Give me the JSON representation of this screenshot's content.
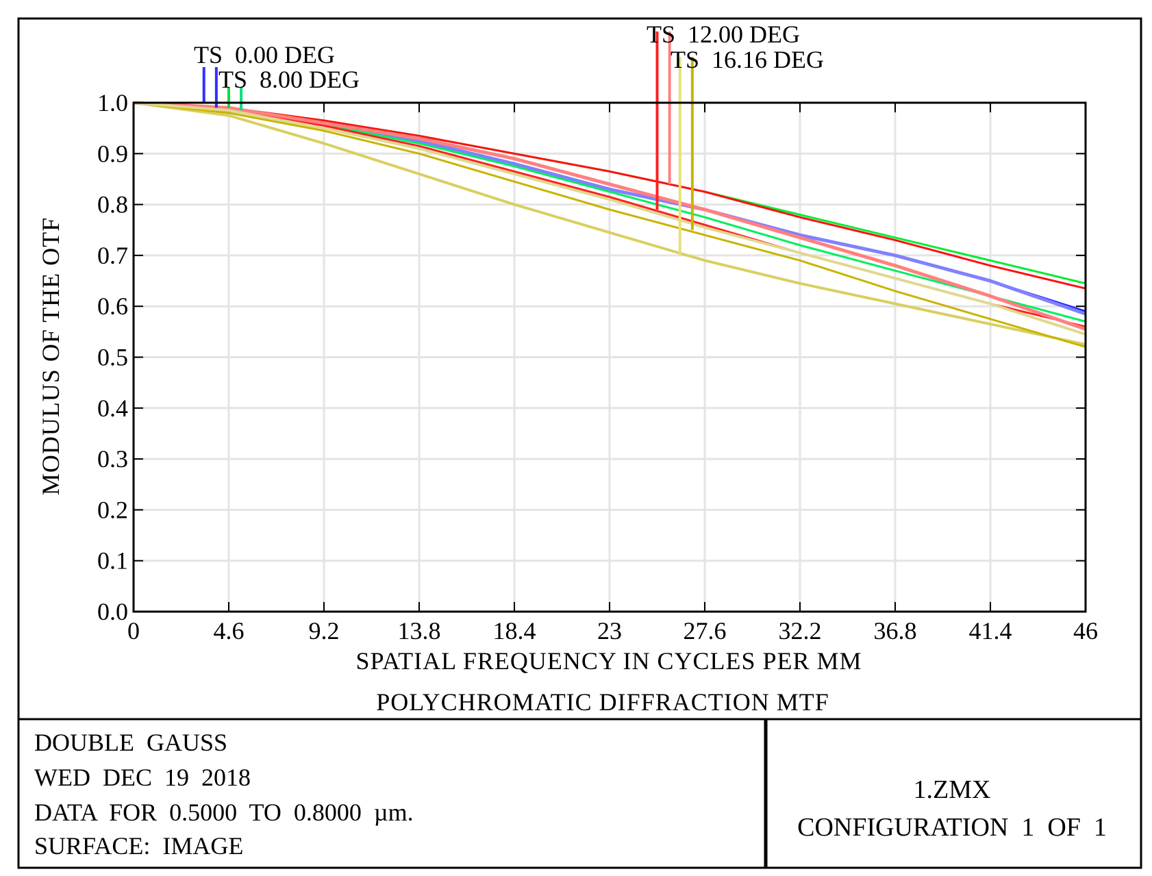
{
  "chart_data": {
    "type": "line",
    "title": "POLYCHROMATIC DIFFRACTION MTF",
    "xlabel": "SPATIAL FREQUENCY IN CYCLES PER MM",
    "ylabel": "MODULUS OF THE OTF",
    "xlim": [
      0,
      46
    ],
    "ylim": [
      0,
      1
    ],
    "grid": true,
    "xticks": [
      0,
      4.6,
      9.2,
      13.8,
      18.4,
      23,
      27.6,
      32.2,
      36.8,
      41.4,
      46
    ],
    "xtick_labels": [
      "0",
      "4.6",
      "9.2",
      "13.8",
      "18.4",
      "23",
      "27.6",
      "32.2",
      "36.8",
      "41.4",
      "46"
    ],
    "yticks": [
      0,
      0.1,
      0.2,
      0.3,
      0.4,
      0.5,
      0.6,
      0.7,
      0.8,
      0.9,
      1.0
    ],
    "ytick_labels": [
      "0.0",
      "0.1",
      "0.2",
      "0.3",
      "0.4",
      "0.5",
      "0.6",
      "0.7",
      "0.8",
      "0.9",
      "1.0"
    ],
    "field_labels": [
      {
        "text": "TS  0.00 DEG",
        "field": "0.00"
      },
      {
        "text": "TS  8.00 DEG",
        "field": "8.00"
      },
      {
        "text": "TS  12.00 DEG",
        "field": "12.00"
      },
      {
        "text": "TS  16.16 DEG",
        "field": "16.16"
      }
    ],
    "legend_markers": [
      {
        "field": "0.00",
        "color": "#3030ff",
        "x": 3.4,
        "top": 1.07,
        "bottom": 1.0
      },
      {
        "field": "0.00",
        "color": "#3030ff",
        "x": 4.0,
        "top": 1.07,
        "bottom": 0.99
      },
      {
        "field": "8.00",
        "color": "#00e040",
        "x": 4.6,
        "top": 1.03,
        "bottom": 0.99
      },
      {
        "field": "8.00",
        "color": "#00e080",
        "x": 5.2,
        "top": 1.03,
        "bottom": 0.985
      },
      {
        "field": "12.00",
        "color": "#ff2020",
        "x": 25.3,
        "top": 1.14,
        "bottom": 0.79
      },
      {
        "field": "12.00",
        "color": "#ff8080",
        "x": 25.9,
        "top": 1.14,
        "bottom": 0.84
      },
      {
        "field": "16.16",
        "color": "#e8e078",
        "x": 26.4,
        "top": 1.09,
        "bottom": 0.7
      },
      {
        "field": "16.16",
        "color": "#c8b400",
        "x": 27.0,
        "top": 1.09,
        "bottom": 0.75
      }
    ],
    "series": [
      {
        "name": "TS 0.00 DEG T",
        "color": "#2020ff",
        "width": 3,
        "x": [
          0,
          4.6,
          9.2,
          13.8,
          18.4,
          23,
          27.6,
          32.2,
          36.8,
          41.4,
          46
        ],
        "y": [
          1.0,
          0.985,
          0.96,
          0.925,
          0.88,
          0.83,
          0.79,
          0.74,
          0.7,
          0.65,
          0.59
        ]
      },
      {
        "name": "TS 0.00 DEG S",
        "color": "#8080ff",
        "width": 5,
        "x": [
          0,
          4.6,
          9.2,
          13.8,
          18.4,
          23,
          27.6,
          32.2,
          36.8,
          41.4,
          46
        ],
        "y": [
          1.0,
          0.985,
          0.96,
          0.925,
          0.88,
          0.83,
          0.79,
          0.74,
          0.7,
          0.65,
          0.585
        ]
      },
      {
        "name": "TS 8.00 DEG T",
        "color": "#00ee30",
        "width": 3,
        "x": [
          0,
          4.6,
          9.2,
          13.8,
          18.4,
          23,
          27.6,
          32.2,
          36.8,
          41.4,
          46
        ],
        "y": [
          1.0,
          0.99,
          0.965,
          0.935,
          0.9,
          0.865,
          0.825,
          0.78,
          0.735,
          0.69,
          0.645
        ]
      },
      {
        "name": "TS 8.00 DEG S",
        "color": "#00ee60",
        "width": 3,
        "x": [
          0,
          4.6,
          9.2,
          13.8,
          18.4,
          23,
          27.6,
          32.2,
          36.8,
          41.4,
          46
        ],
        "y": [
          1.0,
          0.985,
          0.958,
          0.92,
          0.875,
          0.825,
          0.775,
          0.72,
          0.67,
          0.62,
          0.57
        ]
      },
      {
        "name": "TS 12.00 DEG T",
        "color": "#ff1010",
        "width": 3,
        "x": [
          0,
          4.6,
          9.2,
          13.8,
          18.4,
          23,
          27.6,
          32.2,
          36.8,
          41.4,
          46
        ],
        "y": [
          1.0,
          0.99,
          0.965,
          0.935,
          0.9,
          0.865,
          0.825,
          0.775,
          0.73,
          0.68,
          0.635
        ]
      },
      {
        "name": "TS 12.00 DEG S",
        "color": "#ff2020",
        "width": 3,
        "x": [
          0,
          4.6,
          9.2,
          13.8,
          18.4,
          23,
          27.6,
          32.2,
          36.8,
          41.4,
          46
        ],
        "y": [
          1.0,
          0.985,
          0.955,
          0.915,
          0.865,
          0.815,
          0.76,
          0.705,
          0.655,
          0.605,
          0.56
        ]
      },
      {
        "name": "TS 12.00 DEG S2",
        "color": "#ff8080",
        "width": 5,
        "x": [
          0,
          4.6,
          9.2,
          13.8,
          18.4,
          23,
          27.6,
          32.2,
          36.8,
          41.4,
          46
        ],
        "y": [
          1.0,
          0.99,
          0.96,
          0.93,
          0.89,
          0.84,
          0.79,
          0.735,
          0.68,
          0.62,
          0.555
        ]
      },
      {
        "name": "TS 16.16 DEG T",
        "color": "#d8d060",
        "width": 4,
        "x": [
          0,
          4.6,
          9.2,
          13.8,
          18.4,
          23,
          27.6,
          32.2,
          36.8,
          41.4,
          46
        ],
        "y": [
          1.0,
          0.975,
          0.92,
          0.86,
          0.8,
          0.745,
          0.69,
          0.645,
          0.605,
          0.565,
          0.525
        ]
      },
      {
        "name": "TS 16.16 DEG S",
        "color": "#c8b400",
        "width": 3,
        "x": [
          0,
          4.6,
          9.2,
          13.8,
          18.4,
          23,
          27.6,
          32.2,
          36.8,
          41.4,
          46
        ],
        "y": [
          1.0,
          0.98,
          0.945,
          0.9,
          0.845,
          0.79,
          0.74,
          0.69,
          0.63,
          0.575,
          0.52
        ]
      },
      {
        "name": "TS 16.16 DEG S2",
        "color": "#e0d890",
        "width": 4,
        "x": [
          0,
          4.6,
          9.2,
          13.8,
          18.4,
          23,
          27.6,
          32.2,
          36.8,
          41.4,
          46
        ],
        "y": [
          1.0,
          0.985,
          0.95,
          0.91,
          0.86,
          0.81,
          0.755,
          0.705,
          0.655,
          0.605,
          0.545
        ]
      }
    ]
  },
  "info": {
    "lines": [
      "DOUBLE  GAUSS",
      "WED  DEC  19  2018",
      "DATA  FOR  0.5000  TO  0.8000  µm.",
      "SURFACE:  IMAGE"
    ],
    "file": "1.ZMX",
    "config": "CONFIGURATION  1  OF  1"
  }
}
